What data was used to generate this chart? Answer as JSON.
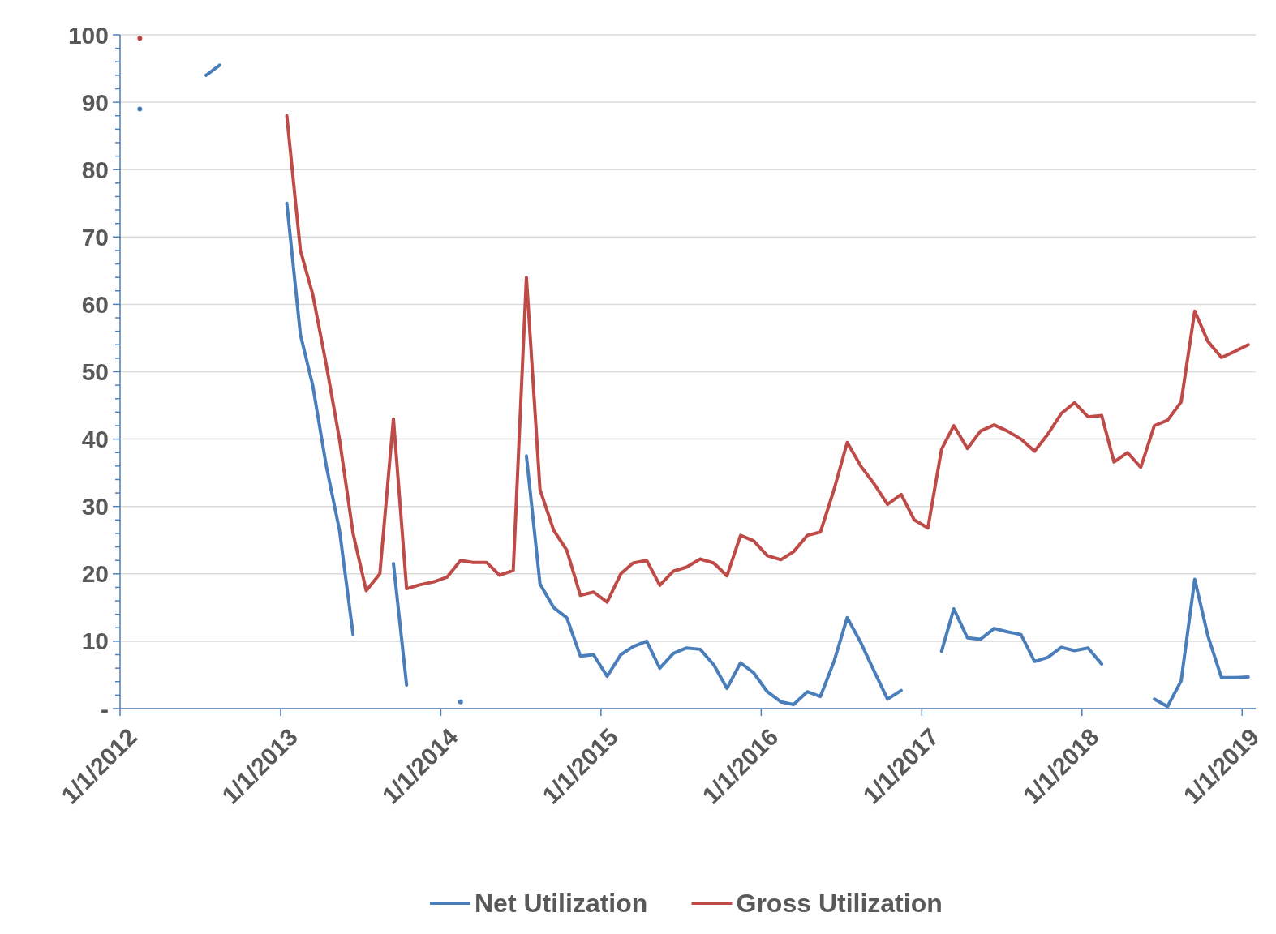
{
  "chart_data": {
    "type": "line",
    "x": [
      "2012-02-15",
      "2012-03-15",
      "2012-04-15",
      "2012-05-15",
      "2012-06-15",
      "2012-07-15",
      "2012-08-15",
      "2012-09-15",
      "2012-10-15",
      "2012-11-15",
      "2012-12-15",
      "2013-01-15",
      "2013-02-15",
      "2013-03-15",
      "2013-04-15",
      "2013-05-15",
      "2013-06-15",
      "2013-07-15",
      "2013-08-15",
      "2013-09-15",
      "2013-10-15",
      "2013-11-15",
      "2013-12-15",
      "2014-01-15",
      "2014-02-15",
      "2014-03-15",
      "2014-04-15",
      "2014-05-15",
      "2014-06-15",
      "2014-07-15",
      "2014-08-15",
      "2014-09-15",
      "2014-10-15",
      "2014-11-15",
      "2014-12-15",
      "2015-01-15",
      "2015-02-15",
      "2015-03-15",
      "2015-04-15",
      "2015-05-15",
      "2015-06-15",
      "2015-07-15",
      "2015-08-15",
      "2015-09-15",
      "2015-10-15",
      "2015-11-15",
      "2015-12-15",
      "2016-01-15",
      "2016-02-15",
      "2016-03-15",
      "2016-04-15",
      "2016-05-15",
      "2016-06-15",
      "2016-07-15",
      "2016-08-15",
      "2016-09-15",
      "2016-10-15",
      "2016-11-15",
      "2016-12-15",
      "2017-01-15",
      "2017-02-15",
      "2017-03-15",
      "2017-04-15",
      "2017-05-15",
      "2017-06-15",
      "2017-07-15",
      "2017-08-15",
      "2017-09-15",
      "2017-10-15",
      "2017-11-15",
      "2017-12-15",
      "2018-01-15",
      "2018-02-15",
      "2018-03-15",
      "2018-04-15",
      "2018-05-15",
      "2018-06-15",
      "2018-07-15",
      "2018-08-15",
      "2018-09-15",
      "2018-10-15",
      "2018-11-15",
      "2018-12-15",
      "2019-01-15"
    ],
    "series": [
      {
        "name": "Net Utilization",
        "color": "#4a7ebb",
        "values": [
          89,
          null,
          null,
          null,
          null,
          94,
          95.5,
          null,
          null,
          null,
          null,
          75,
          55.5,
          48,
          36,
          26.5,
          11,
          null,
          null,
          21.5,
          3.5,
          null,
          null,
          null,
          1,
          null,
          null,
          null,
          null,
          37.5,
          18.5,
          15,
          13.5,
          7.8,
          8,
          4.8,
          8,
          9.2,
          10,
          6,
          8.2,
          9,
          8.8,
          6.5,
          3,
          6.8,
          5.3,
          2.5,
          1,
          0.6,
          2.5,
          1.8,
          7,
          13.5,
          9.8,
          5.5,
          1.4,
          2.7,
          null,
          null,
          8.5,
          14.8,
          10.5,
          10.3,
          11.9,
          11.4,
          11,
          7,
          7.6,
          9.1,
          8.6,
          9,
          6.6,
          null,
          null,
          null,
          1.4,
          0.3,
          4.1,
          19.2,
          10.8,
          4.6,
          4.6,
          4.7
        ]
      },
      {
        "name": "Gross Utilization",
        "color": "#be4b48",
        "values": [
          99.5,
          null,
          null,
          null,
          null,
          null,
          null,
          null,
          null,
          null,
          null,
          88,
          68,
          61.5,
          51,
          40,
          26,
          17.5,
          20,
          43,
          17.8,
          18.4,
          18.8,
          19.5,
          22,
          21.7,
          21.7,
          19.8,
          20.5,
          64,
          32.5,
          26.5,
          23.5,
          16.8,
          17.3,
          15.8,
          20,
          21.6,
          22,
          18.3,
          20.4,
          21,
          22.2,
          21.6,
          19.7,
          25.7,
          24.9,
          22.7,
          22.1,
          23.3,
          25.7,
          26.2,
          32.5,
          39.5,
          36,
          33.3,
          30.3,
          31.8,
          28,
          26.8,
          38.5,
          42,
          38.6,
          41.2,
          42.1,
          41.2,
          40,
          38.2,
          40.7,
          43.8,
          45.4,
          43.3,
          43.5,
          36.6,
          38,
          35.8,
          42,
          42.8,
          45.5,
          59,
          54.5,
          52.1,
          53,
          54
        ]
      }
    ],
    "xlim": [
      "2012-01-01",
      "2019-02-01"
    ],
    "xticks": [
      {
        "value": "2012-01-01",
        "label": "1/1/2012"
      },
      {
        "value": "2013-01-01",
        "label": "1/1/2013"
      },
      {
        "value": "2014-01-01",
        "label": "1/1/2014"
      },
      {
        "value": "2015-01-01",
        "label": "1/1/2015"
      },
      {
        "value": "2016-01-01",
        "label": "1/1/2016"
      },
      {
        "value": "2017-01-01",
        "label": "1/1/2017"
      },
      {
        "value": "2018-01-01",
        "label": "1/1/2018"
      },
      {
        "value": "2019-01-01",
        "label": "1/1/2019"
      }
    ],
    "ylim": [
      0,
      100
    ],
    "yticks": [
      {
        "value": 0,
        "label": "-"
      },
      {
        "value": 2,
        "label": null
      },
      {
        "value": 4,
        "label": null
      },
      {
        "value": 6,
        "label": null
      },
      {
        "value": 8,
        "label": null
      },
      10,
      {
        "value": 12,
        "label": null
      },
      {
        "value": 14,
        "label": null
      },
      {
        "value": 16,
        "label": null
      },
      {
        "value": 18,
        "label": null
      },
      20,
      {
        "value": 22,
        "label": null
      },
      {
        "value": 24,
        "label": null
      },
      {
        "value": 26,
        "label": null
      },
      {
        "value": 28,
        "label": null
      },
      30,
      {
        "value": 32,
        "label": null
      },
      {
        "value": 34,
        "label": null
      },
      {
        "value": 36,
        "label": null
      },
      {
        "value": 38,
        "label": null
      },
      40,
      {
        "value": 42,
        "label": null
      },
      {
        "value": 44,
        "label": null
      },
      {
        "value": 46,
        "label": null
      },
      {
        "value": 48,
        "label": null
      },
      50,
      {
        "value": 52,
        "label": null
      },
      {
        "value": 54,
        "label": null
      },
      {
        "value": 56,
        "label": null
      },
      {
        "value": 58,
        "label": null
      },
      60,
      {
        "value": 62,
        "label": null
      },
      {
        "value": 64,
        "label": null
      },
      {
        "value": 66,
        "label": null
      },
      {
        "value": 68,
        "label": null
      },
      70,
      {
        "value": 72,
        "label": null
      },
      {
        "value": 74,
        "label": null
      },
      {
        "value": 76,
        "label": null
      },
      {
        "value": 78,
        "label": null
      },
      80,
      {
        "value": 82,
        "label": null
      },
      {
        "value": 84,
        "label": null
      },
      {
        "value": 86,
        "label": null
      },
      {
        "value": 88,
        "label": null
      },
      90,
      {
        "value": 92,
        "label": null
      },
      {
        "value": 94,
        "label": null
      },
      {
        "value": 96,
        "label": null
      },
      {
        "value": 98,
        "label": null
      },
      100
    ],
    "grid": "y",
    "legend": "bottom",
    "line_style": "solid",
    "marker": "none"
  }
}
